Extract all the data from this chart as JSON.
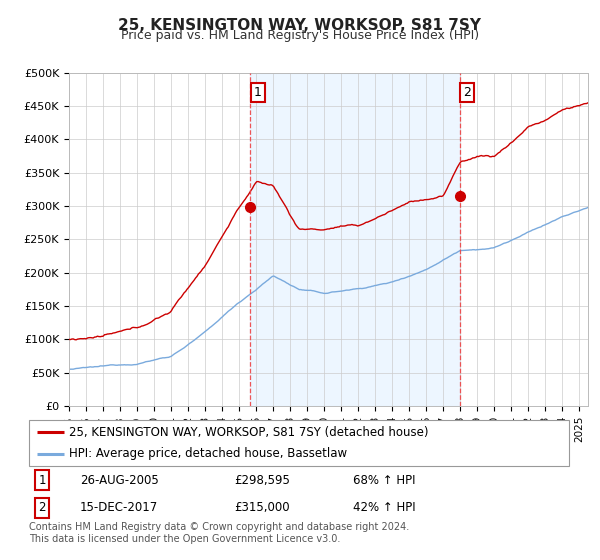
{
  "title": "25, KENSINGTON WAY, WORKSOP, S81 7SY",
  "subtitle": "Price paid vs. HM Land Registry's House Price Index (HPI)",
  "ylabel_ticks": [
    "£0",
    "£50K",
    "£100K",
    "£150K",
    "£200K",
    "£250K",
    "£300K",
    "£350K",
    "£400K",
    "£450K",
    "£500K"
  ],
  "ytick_values": [
    0,
    50000,
    100000,
    150000,
    200000,
    250000,
    300000,
    350000,
    400000,
    450000,
    500000
  ],
  "ylim": [
    0,
    500000
  ],
  "xlim_start": 1995.0,
  "xlim_end": 2025.5,
  "transaction1_x": 2005.65,
  "transaction1_y": 298595,
  "transaction2_x": 2017.96,
  "transaction2_y": 315000,
  "transaction1_label": "1",
  "transaction2_label": "2",
  "legend_line1": "25, KENSINGTON WAY, WORKSOP, S81 7SY (detached house)",
  "legend_line2": "HPI: Average price, detached house, Bassetlaw",
  "table_row1": [
    "1",
    "26-AUG-2005",
    "£298,595",
    "68% ↑ HPI"
  ],
  "table_row2": [
    "2",
    "15-DEC-2017",
    "£315,000",
    "42% ↑ HPI"
  ],
  "footer": "Contains HM Land Registry data © Crown copyright and database right 2024.\nThis data is licensed under the Open Government Licence v3.0.",
  "hpi_color": "#7aaadd",
  "price_color": "#cc0000",
  "vline_color": "#ee4444",
  "background_color": "#ffffff",
  "grid_color": "#cccccc",
  "shading_color": "#ddeeff",
  "title_fontsize": 11,
  "subtitle_fontsize": 9,
  "tick_fontsize": 8,
  "legend_fontsize": 8.5,
  "footer_fontsize": 7
}
